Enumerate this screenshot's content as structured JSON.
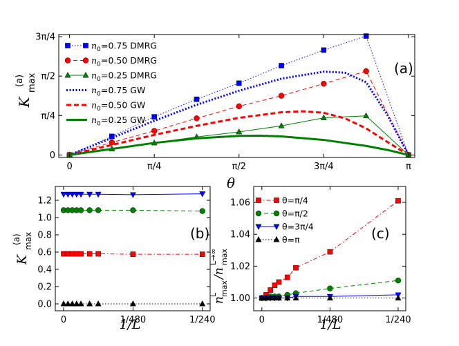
{
  "chart_data": [
    {
      "panel": "(a)",
      "type": "line",
      "xlabel": "θ",
      "ylabel": "K_max^(a)",
      "xlim": [
        -0.1,
        3.2
      ],
      "ylim": [
        -0.05,
        2.4
      ],
      "xticks": [
        0,
        0.7854,
        1.5708,
        2.3562,
        3.1416
      ],
      "xticklabels": [
        "0",
        "π/4",
        "π/2",
        "3π/4",
        "π"
      ],
      "yticks": [
        0,
        0.7854,
        1.5708,
        2.3562
      ],
      "yticklabels": [
        "0",
        "π/4",
        "π/2",
        "3π/4"
      ],
      "grid": false,
      "legend_position": "upper-left",
      "series": [
        {
          "name": "n0=0.75 DMRG",
          "legend_text": "=0.75 DMRG",
          "color": "#0000ff",
          "marker": "square",
          "linestyle": "dotted",
          "x": [
            0,
            0.3927,
            0.7854,
            1.1781,
            1.5708,
            1.9635,
            2.3562,
            2.7489,
            3.1416
          ],
          "y": [
            0,
            0.37,
            0.76,
            1.11,
            1.43,
            1.78,
            2.09,
            2.37,
            0
          ]
        },
        {
          "name": "n0=0.50 DMRG",
          "legend_text": "=0.50 DMRG",
          "color": "#ff0000",
          "marker": "circle",
          "linestyle": "dashed",
          "x": [
            0,
            0.3927,
            0.7854,
            1.1781,
            1.5708,
            1.9635,
            2.3562,
            2.7489,
            3.1416
          ],
          "y": [
            0,
            0.25,
            0.48,
            0.73,
            0.97,
            1.18,
            1.42,
            1.67,
            0
          ]
        },
        {
          "name": "n0=0.25 DMRG",
          "legend_text": "=0.25 DMRG",
          "color": "#008000",
          "marker": "triangle",
          "linestyle": "solid",
          "x": [
            0,
            0.3927,
            0.7854,
            1.1781,
            1.5708,
            1.9635,
            2.3562,
            2.7489,
            3.1416
          ],
          "y": [
            0,
            0.12,
            0.24,
            0.36,
            0.46,
            0.58,
            0.74,
            0.78,
            0
          ]
        },
        {
          "name": "n0=0.75 GW",
          "legend_text": "=0.75 GW",
          "color": "#0000ff",
          "marker": "none",
          "linestyle": "dotted-thick",
          "x": [
            0,
            0.3927,
            0.7854,
            1.1781,
            1.5708,
            1.9635,
            2.3562,
            2.5525,
            2.7489,
            2.9452,
            3.1416
          ],
          "y": [
            0,
            0.34,
            0.68,
            1.0,
            1.28,
            1.52,
            1.66,
            1.64,
            1.45,
            0.8,
            0
          ]
        },
        {
          "name": "n0=0.50 GW",
          "legend_text": "=0.50 GW",
          "color": "#ff0000",
          "marker": "none",
          "linestyle": "dashed-thick",
          "x": [
            0,
            0.3927,
            0.7854,
            1.1781,
            1.5708,
            1.9635,
            2.1598,
            2.3562,
            2.5525,
            2.7489,
            2.9452,
            3.1416
          ],
          "y": [
            0,
            0.2,
            0.4,
            0.58,
            0.74,
            0.85,
            0.87,
            0.84,
            0.73,
            0.53,
            0.26,
            0
          ]
        },
        {
          "name": "n0=0.25 GW",
          "legend_text": "=0.25 GW",
          "color": "#008000",
          "marker": "none",
          "linestyle": "solid-thick",
          "x": [
            0,
            0.3927,
            0.7854,
            1.1781,
            1.5708,
            1.7671,
            1.9635,
            2.3562,
            2.7489,
            2.9452,
            3.1416
          ],
          "y": [
            0,
            0.12,
            0.24,
            0.33,
            0.38,
            0.385,
            0.37,
            0.3,
            0.18,
            0.1,
            0
          ]
        }
      ]
    },
    {
      "panel": "(b)",
      "type": "line",
      "xlabel": "1/L",
      "ylabel": "K_max^(a)",
      "xlim": [
        -0.00025,
        0.0044
      ],
      "ylim": [
        -0.08,
        1.36
      ],
      "xticks": [
        0,
        0.0020833,
        0.0041667
      ],
      "xticklabels": [
        "0",
        "1/480",
        "1/240"
      ],
      "yticks": [
        0.0,
        0.2,
        0.4,
        0.6,
        0.8,
        1.0,
        1.2
      ],
      "yticklabels": [
        "0.0",
        "0.2",
        "0.4",
        "0.6",
        "0.8",
        "1.0",
        "1.2"
      ],
      "grid": false,
      "series": [
        {
          "name": "θ=3π/4",
          "color": "#0000ff",
          "marker": "triangle-down",
          "linestyle": "solid",
          "x": [
            0,
            0.00013,
            0.00026,
            0.00039,
            0.00052,
            0.00078,
            0.00104,
            0.0020833,
            0.0041667
          ],
          "y": [
            1.27,
            1.27,
            1.27,
            1.27,
            1.27,
            1.27,
            1.27,
            1.265,
            1.275
          ]
        },
        {
          "name": "θ=π/2",
          "color": "#008000",
          "marker": "circle",
          "linestyle": "dashed",
          "x": [
            0,
            0.00013,
            0.00026,
            0.00039,
            0.00052,
            0.00078,
            0.00104,
            0.0020833,
            0.0041667
          ],
          "y": [
            1.085,
            1.085,
            1.085,
            1.085,
            1.085,
            1.085,
            1.085,
            1.085,
            1.075
          ]
        },
        {
          "name": "θ=π/4",
          "color": "#ff0000",
          "marker": "square",
          "linestyle": "dashdot",
          "x": [
            0,
            0.00013,
            0.00026,
            0.00039,
            0.00052,
            0.00078,
            0.00104,
            0.0020833,
            0.0041667
          ],
          "y": [
            0.58,
            0.58,
            0.58,
            0.58,
            0.58,
            0.58,
            0.58,
            0.575,
            0.575
          ]
        },
        {
          "name": "θ=π",
          "color": "#000000",
          "marker": "triangle",
          "linestyle": "dotted",
          "x": [
            0,
            0.00013,
            0.00026,
            0.00039,
            0.00052,
            0.00078,
            0.00104,
            0.0020833,
            0.0041667
          ],
          "y": [
            0.0,
            0.0,
            0.0,
            0.0,
            0.0,
            0.0,
            0.0,
            0.0,
            0.0
          ]
        }
      ]
    },
    {
      "panel": "(c)",
      "type": "line",
      "xlabel": "1/L",
      "ylabel": "n_max^L / n_max^(L→∞)",
      "xlim": [
        -0.00025,
        0.0044
      ],
      "ylim": [
        0.992,
        1.07
      ],
      "xticks": [
        0,
        0.0020833,
        0.0041667
      ],
      "xticklabels": [
        "0",
        "1/480",
        "1/240"
      ],
      "yticks": [
        1.0,
        1.02,
        1.04,
        1.06
      ],
      "yticklabels": [
        "1.00",
        "1.02",
        "1.04",
        "1.06"
      ],
      "grid": false,
      "legend_position": "upper-left",
      "series": [
        {
          "name": "θ=π/4",
          "legend_text": "θ=π/4",
          "color": "#ff0000",
          "marker": "square",
          "linestyle": "dashdot",
          "x": [
            0,
            0.00013,
            0.00026,
            0.00039,
            0.00052,
            0.00078,
            0.00104,
            0.0020833,
            0.0041667
          ],
          "y": [
            1.0,
            1.002,
            1.005,
            1.008,
            1.01,
            1.013,
            1.019,
            1.029,
            1.061
          ]
        },
        {
          "name": "θ=π/2",
          "legend_text": "θ=π/2",
          "color": "#008000",
          "marker": "circle",
          "linestyle": "dashed",
          "x": [
            0,
            0.00013,
            0.00026,
            0.00039,
            0.00052,
            0.00078,
            0.00104,
            0.0020833,
            0.0041667
          ],
          "y": [
            1.0,
            1.0,
            1.001,
            1.001,
            1.001,
            1.002,
            1.003,
            1.006,
            1.011
          ]
        },
        {
          "name": "θ=3π/4",
          "legend_text": "θ=3π/4",
          "color": "#0000ff",
          "marker": "triangle-down",
          "linestyle": "solid",
          "x": [
            0,
            0.00013,
            0.00026,
            0.00039,
            0.00052,
            0.00078,
            0.00104,
            0.0020833,
            0.0041667
          ],
          "y": [
            1.0,
            1.0,
            1.0,
            1.0,
            1.0,
            1.0,
            1.001,
            1.001,
            1.002
          ]
        },
        {
          "name": "θ=π",
          "legend_text": "θ=π",
          "color": "#000000",
          "marker": "triangle",
          "linestyle": "dotted",
          "x": [
            0,
            0.00013,
            0.00026,
            0.00039,
            0.00052,
            0.00078,
            0.00104,
            0.0020833,
            0.0041667
          ],
          "y": [
            1.0,
            1.0,
            1.0,
            1.0,
            1.0,
            1.0,
            1.0,
            1.0,
            1.0
          ]
        }
      ]
    }
  ]
}
